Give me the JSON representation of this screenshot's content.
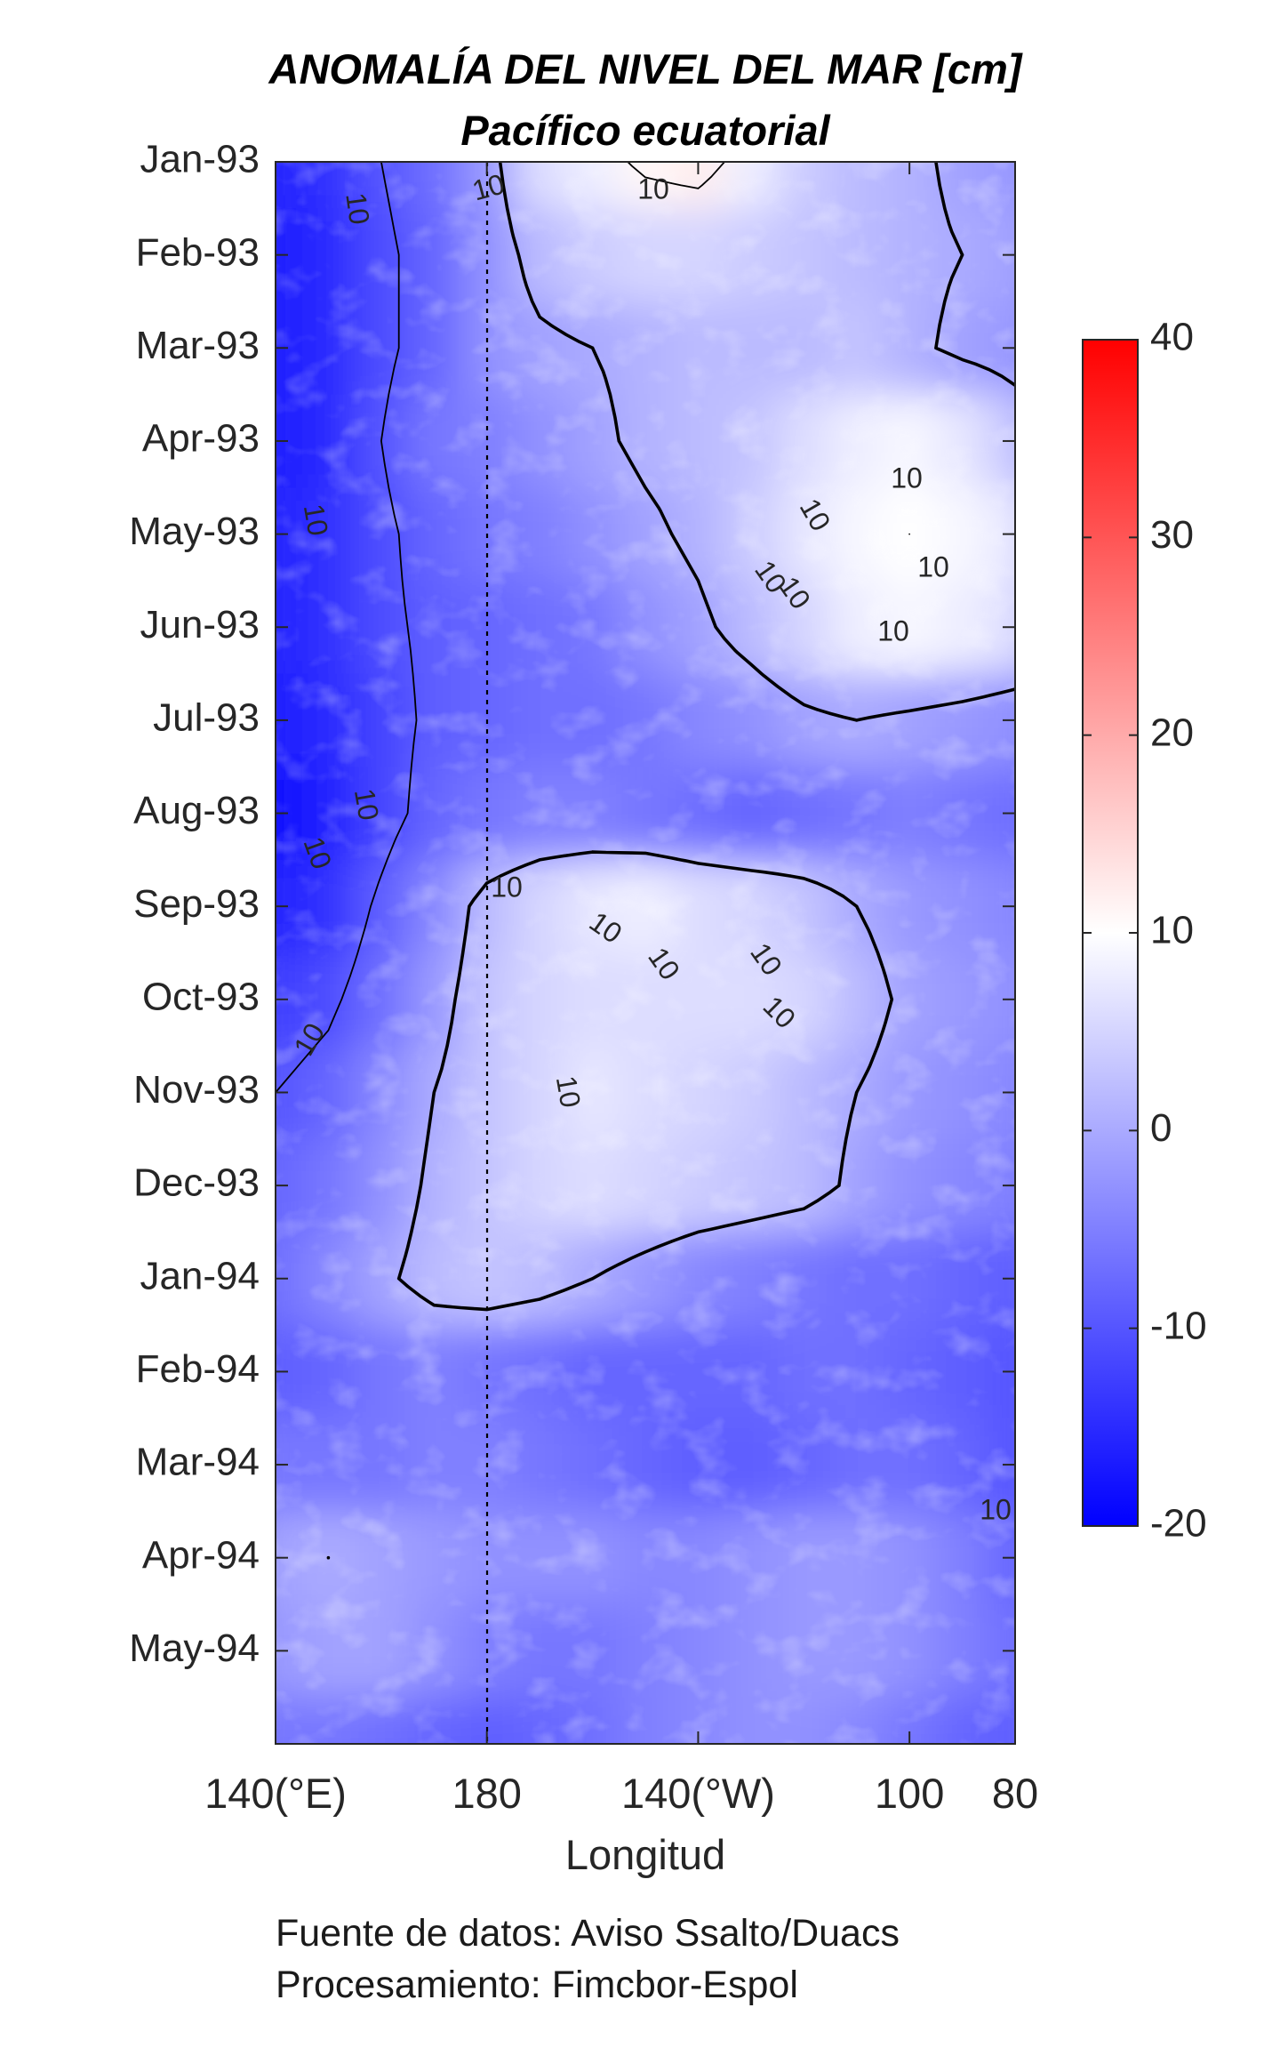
{
  "chart_data": {
    "type": "heatmap",
    "subtype": "hovmoller-contour",
    "title": "ANOMALÍA DEL NIVEL DEL MAR [cm]",
    "subtitle": "Pacífico ecuatorial",
    "xlabel": "Longitud",
    "ylabel": "",
    "x_ticks": [
      {
        "value": 140,
        "label": "140(°E)"
      },
      {
        "value": 180,
        "label": "180"
      },
      {
        "value": 220,
        "label": "140(°W)"
      },
      {
        "value": 260,
        "label": "100"
      },
      {
        "value": 280,
        "label": "80"
      }
    ],
    "xlim": [
      140,
      280
    ],
    "y_ticks": [
      "Jan-93",
      "Feb-93",
      "Mar-93",
      "Apr-93",
      "May-93",
      "Jun-93",
      "Jul-93",
      "Aug-93",
      "Sep-93",
      "Oct-93",
      "Nov-93",
      "Dec-93",
      "Jan-94",
      "Feb-94",
      "Mar-94",
      "Apr-94",
      "May-94"
    ],
    "ylim": [
      "Jan-93",
      "Jun-94"
    ],
    "y_reversed": true,
    "dateline_longitude": 180,
    "colorbar": {
      "min": -20,
      "max": 40,
      "ticks": [
        40,
        30,
        20,
        10,
        0,
        -10,
        -20
      ],
      "colormap": [
        "#0000ff",
        "#ffffff",
        "#ff0000"
      ],
      "white_at": 10
    },
    "contour_levels": [
      -10,
      0,
      10
    ],
    "contour_labels": [
      "10",
      "10",
      "10",
      "10",
      "10",
      "10",
      "10",
      "10",
      "10",
      "10",
      "10",
      "10",
      "10",
      "10",
      "10",
      "10",
      "10",
      "10",
      "10",
      "10"
    ],
    "anomaly_grid": {
      "x_longitudes": [
        140,
        150,
        160,
        170,
        180,
        190,
        200,
        210,
        220,
        230,
        240,
        250,
        260,
        270,
        280
      ],
      "rows": [
        {
          "month": "Jan-93",
          "values": [
            -16,
            -14,
            -10,
            -7,
            -2,
            6,
            8,
            11,
            12,
            8,
            4,
            2,
            1,
            -1,
            -2
          ]
        },
        {
          "month": "Feb-93",
          "values": [
            -17,
            -15,
            -11,
            -8,
            -3,
            2,
            4,
            5,
            5,
            4,
            3,
            2,
            1,
            0,
            -1
          ]
        },
        {
          "month": "Mar-93",
          "values": [
            -17,
            -15,
            -11,
            -8,
            -3,
            -1,
            0,
            1,
            2,
            2,
            2,
            3,
            1,
            -1,
            -2
          ]
        },
        {
          "month": "Apr-93",
          "values": [
            -17,
            -15,
            -10,
            -6,
            -5,
            -3,
            -1,
            1,
            2,
            3,
            6,
            8,
            9,
            7,
            3
          ]
        },
        {
          "month": "May-93",
          "values": [
            -16,
            -14,
            -11,
            -8,
            -6,
            -5,
            -3,
            -1,
            1,
            4,
            7,
            9,
            10,
            9,
            7
          ]
        },
        {
          "month": "Jun-93",
          "values": [
            -16,
            -14,
            -11,
            -9,
            -8,
            -7,
            -6,
            -3,
            -1,
            2,
            5,
            8,
            9,
            8,
            6
          ]
        },
        {
          "month": "Jul-93",
          "values": [
            -17,
            -15,
            -12,
            -9,
            -8,
            -7,
            -7,
            -6,
            -4,
            -3,
            -1,
            0,
            -1,
            -2,
            -3
          ]
        },
        {
          "month": "Aug-93",
          "values": [
            -18,
            -16,
            -12,
            -8,
            -6,
            -5,
            -5,
            -6,
            -7,
            -8,
            -7,
            -6,
            -5,
            -6,
            -7
          ]
        },
        {
          "month": "Sep-93",
          "values": [
            -16,
            -14,
            -9,
            -4,
            2,
            5,
            7,
            8,
            6,
            5,
            3,
            0,
            -2,
            -3,
            -4
          ]
        },
        {
          "month": "Oct-93",
          "values": [
            -13,
            -11,
            -7,
            -2,
            3,
            5,
            6,
            6,
            6,
            6,
            5,
            2,
            -1,
            -2,
            -3
          ]
        },
        {
          "month": "Nov-93",
          "values": [
            -10,
            -8,
            -4,
            0,
            3,
            5,
            7,
            6,
            5,
            4,
            2,
            0,
            -2,
            -3,
            -4
          ]
        },
        {
          "month": "Dec-93",
          "values": [
            -8,
            -6,
            -3,
            1,
            3,
            5,
            6,
            5,
            4,
            3,
            2,
            -1,
            -3,
            -4,
            -5
          ]
        },
        {
          "month": "Jan-94",
          "values": [
            -7,
            -4,
            -1,
            2,
            3,
            2,
            0,
            -2,
            -4,
            -5,
            -6,
            -7,
            -7,
            -8,
            -9
          ]
        },
        {
          "month": "Feb-94",
          "values": [
            -9,
            -8,
            -6,
            -5,
            -6,
            -7,
            -8,
            -8,
            -8,
            -8,
            -7,
            -7,
            -8,
            -9,
            -10
          ]
        },
        {
          "month": "Mar-94",
          "values": [
            -6,
            -6,
            -6,
            -5,
            -5,
            -6,
            -7,
            -8,
            -9,
            -9,
            -8,
            -7,
            -7,
            -8,
            -10
          ]
        },
        {
          "month": "Apr-94",
          "values": [
            -1,
            0,
            -1,
            -2,
            -3,
            -3,
            -3,
            -4,
            -4,
            -3,
            -2,
            -2,
            -3,
            -5,
            -8
          ]
        },
        {
          "month": "May-94",
          "values": [
            -2,
            -1,
            -1,
            -3,
            -5,
            -6,
            -6,
            -5,
            -4,
            -3,
            -2,
            -2,
            -3,
            -5,
            -7
          ]
        },
        {
          "month": "Jun-94",
          "values": [
            -6,
            -6,
            -7,
            -8,
            -9,
            -8,
            -7,
            -5,
            -4,
            -3,
            -3,
            -4,
            -6,
            -8,
            -9
          ]
        }
      ]
    },
    "grid": false
  },
  "footer": {
    "source": "Fuente de datos: Aviso Ssalto/Duacs",
    "processing": "Procesamiento: Fimcbor-Espol"
  }
}
